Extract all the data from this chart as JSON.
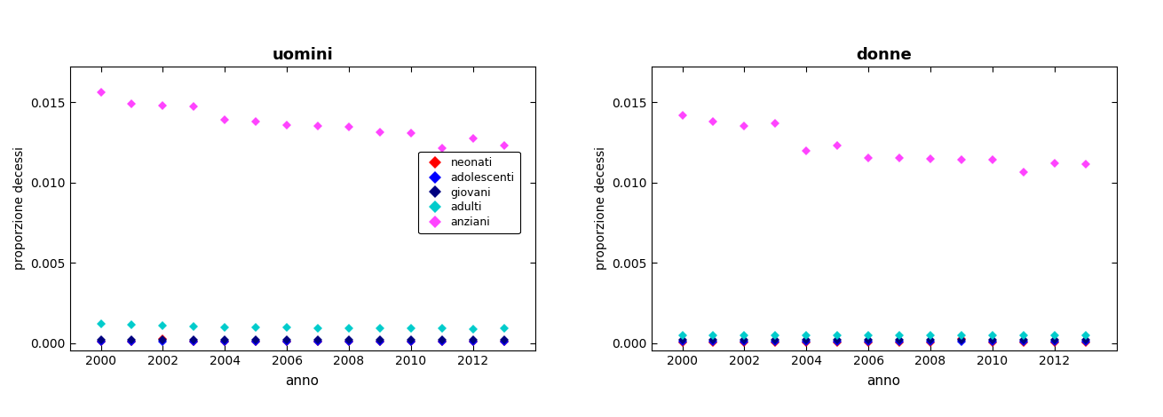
{
  "years": [
    2000,
    2001,
    2002,
    2003,
    2004,
    2005,
    2006,
    2007,
    2008,
    2009,
    2010,
    2011,
    2012,
    2013
  ],
  "uomini": {
    "neonati": [
      8e-05,
      0.0001,
      0.00025,
      8e-05,
      8e-05,
      8e-05,
      8e-05,
      8e-05,
      8e-05,
      8e-05,
      8e-05,
      8e-05,
      8e-05,
      8e-05
    ],
    "adolescenti": [
      8e-05,
      8e-05,
      8e-05,
      8e-05,
      8e-05,
      8e-05,
      8e-05,
      8e-05,
      8e-05,
      8e-05,
      8e-05,
      8e-05,
      8e-05,
      8e-05
    ],
    "giovani": [
      0.0002,
      0.0002,
      0.0002,
      0.0002,
      0.0002,
      0.0002,
      0.0002,
      0.0002,
      0.0002,
      0.0002,
      0.0002,
      0.0002,
      0.0002,
      0.0002
    ],
    "adulti": [
      0.0012,
      0.00115,
      0.0011,
      0.00105,
      0.001,
      0.00098,
      0.00095,
      0.0009,
      0.0009,
      0.0009,
      0.0009,
      0.0009,
      0.00088,
      0.0009
    ],
    "anziani": [
      0.0156,
      0.0149,
      0.0148,
      0.0147,
      0.0139,
      0.0138,
      0.01355,
      0.0135,
      0.01345,
      0.0131,
      0.01305,
      0.01215,
      0.01275,
      0.0123
    ]
  },
  "donne": {
    "neonati": [
      5e-05,
      5e-05,
      5e-05,
      5e-05,
      5e-05,
      5e-05,
      5e-05,
      5e-05,
      5e-05,
      0.00025,
      5e-05,
      5e-05,
      5e-05,
      5e-05
    ],
    "adolescenti": [
      8e-05,
      8e-05,
      8e-05,
      8e-05,
      8e-05,
      8e-05,
      8e-05,
      8e-05,
      8e-05,
      8e-05,
      8e-05,
      8e-05,
      8e-05,
      8e-05
    ],
    "giovani": [
      0.0002,
      0.0002,
      0.0002,
      0.0002,
      0.0002,
      0.0002,
      0.0002,
      0.0002,
      0.0002,
      0.0002,
      0.0002,
      0.0002,
      0.0002,
      0.0002
    ],
    "adulti": [
      0.0005,
      0.00048,
      0.00048,
      0.00048,
      0.00048,
      0.00048,
      0.00048,
      0.00048,
      0.00048,
      0.00048,
      0.00048,
      0.00048,
      0.00048,
      0.00048
    ],
    "anziani": [
      0.01415,
      0.0138,
      0.0135,
      0.01365,
      0.01195,
      0.0123,
      0.0115,
      0.0115,
      0.01145,
      0.0114,
      0.0114,
      0.01065,
      0.0112,
      0.01115
    ]
  },
  "colors": {
    "neonati": "#FF0000",
    "adolescenti": "#0000FF",
    "giovani": "#000080",
    "adulti": "#00CCCC",
    "anziani": "#FF44FF"
  },
  "title_left": "uomini",
  "title_right": "donne",
  "ylabel": "proporzione decessi",
  "xlabel": "anno",
  "ylim_lower": -0.00045,
  "ylim_upper": 0.0172,
  "yticks": [
    0.0,
    0.005,
    0.01,
    0.015
  ],
  "legend_labels": [
    "neonati",
    "adolescenti",
    "giovani",
    "adulti",
    "anziani"
  ],
  "marker": "D",
  "markersize": 5,
  "background_color": "#FFFFFF",
  "legend_order": [
    "neonati",
    "adolescenti",
    "giovani",
    "adulti",
    "anziani"
  ]
}
